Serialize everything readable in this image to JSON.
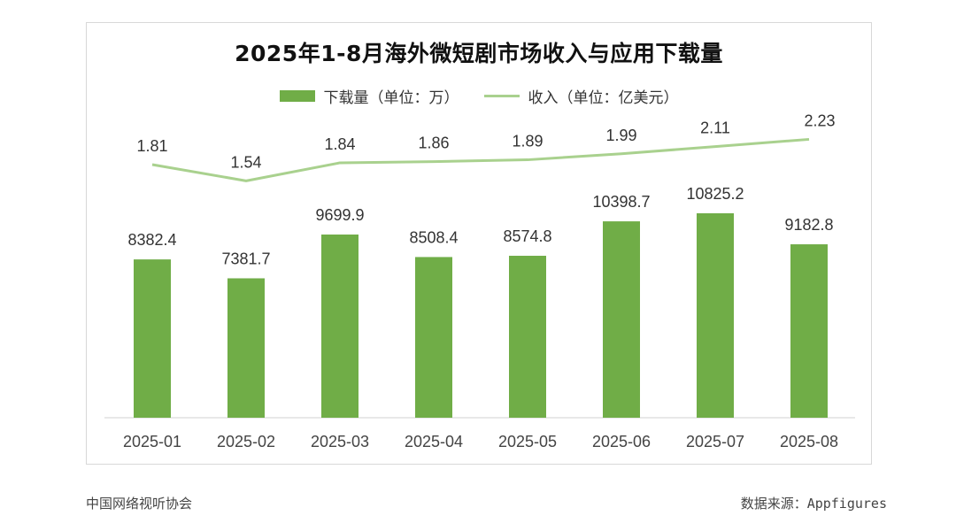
{
  "chart_data": {
    "type": "bar+line",
    "title": "2025年1-8月海外微短剧市场收入与应用下载量",
    "categories": [
      "2025-01",
      "2025-02",
      "2025-03",
      "2025-04",
      "2025-05",
      "2025-06",
      "2025-07",
      "2025-08"
    ],
    "series": [
      {
        "name": "下载量（单位：万）",
        "type": "bar",
        "values": [
          8382.4,
          7381.7,
          9699.9,
          8508.4,
          8574.8,
          10398.7,
          10825.2,
          9182.8
        ],
        "labels": [
          "8382.4",
          "7381.7",
          "9699.9",
          "8508.4",
          "8574.8",
          "10398.7",
          "10825.2",
          "9182.8"
        ],
        "color": "#70ad47"
      },
      {
        "name": "收入（单位：亿美元）",
        "type": "line",
        "values": [
          1.81,
          1.54,
          1.84,
          1.86,
          1.89,
          1.99,
          2.11,
          2.23
        ],
        "labels": [
          "1.81",
          "1.54",
          "1.84",
          "1.86",
          "1.89",
          "1.99",
          "2.11",
          "2.23"
        ],
        "color": "#a9d18e"
      }
    ],
    "legend_position": "top-center",
    "grid": false,
    "axes_visible": {
      "x": true,
      "y": false
    }
  },
  "footer": {
    "left": "中国网络视听协会",
    "right": "数据来源：Appfigures"
  }
}
